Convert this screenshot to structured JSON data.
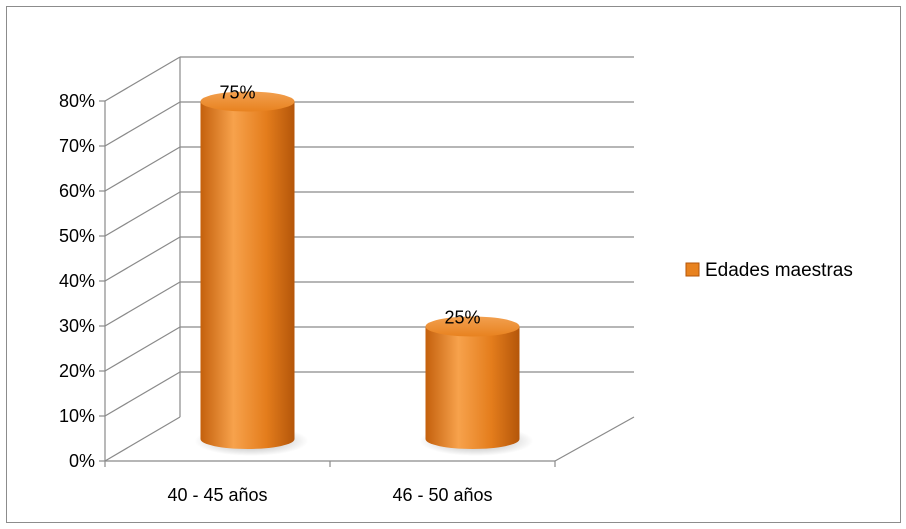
{
  "chart_data": {
    "type": "bar",
    "style": "3d-cylinder",
    "categories": [
      "40 - 45 años",
      "46 - 50 años"
    ],
    "series": [
      {
        "name": "Edades maestras",
        "values": [
          75,
          25
        ],
        "color": "#e8821f"
      }
    ],
    "data_labels": [
      "75%",
      "25%"
    ],
    "ylim": [
      0,
      80
    ],
    "yticks": [
      0,
      10,
      20,
      30,
      40,
      50,
      60,
      70,
      80
    ],
    "ytick_labels": [
      "0%",
      "10%",
      "20%",
      "30%",
      "40%",
      "50%",
      "60%",
      "70%",
      "80%"
    ],
    "grid": true,
    "legend_position": "right"
  }
}
